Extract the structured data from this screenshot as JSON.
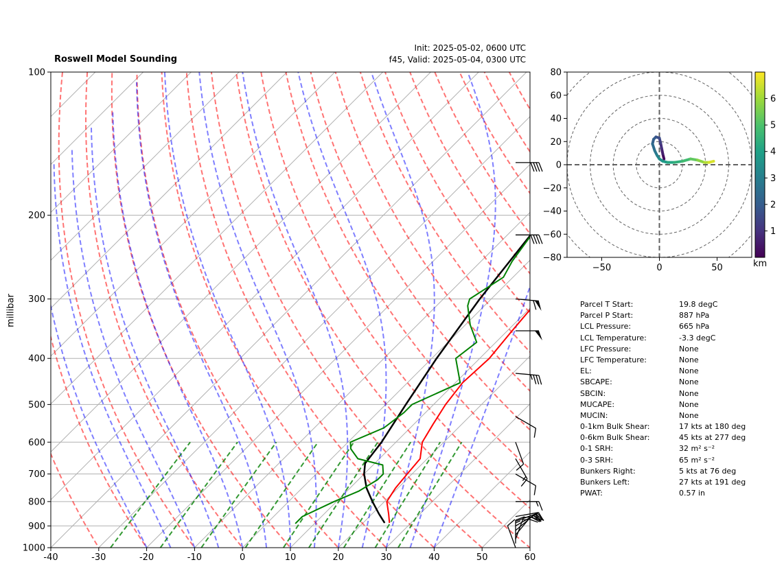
{
  "title": "Roswell Model Sounding",
  "init": "Init: 2025-05-02, 0600 UTC",
  "valid": "f45, Valid: 2025-05-04, 0300 UTC",
  "chart_data": [
    {
      "type": "line",
      "name": "skew-t",
      "ylabel": "millibar",
      "xlim": [
        -40,
        60
      ],
      "ylim_pressure": [
        1000,
        100
      ],
      "xticks": [
        -40,
        -30,
        -20,
        -10,
        0,
        10,
        20,
        30,
        40,
        50,
        60
      ],
      "pressure_ticks": [
        100,
        200,
        300,
        400,
        500,
        600,
        700,
        800,
        900,
        1000
      ],
      "series": [
        {
          "role": "parcel",
          "color": "#000000",
          "points": [
            [
              887,
              24.5
            ],
            [
              850,
              21.5
            ],
            [
              800,
              17.5
            ],
            [
              750,
              13.5
            ],
            [
              700,
              10.0
            ],
            [
              665,
              8.0
            ],
            [
              600,
              7.0
            ],
            [
              500,
              4.2
            ],
            [
              400,
              1.0
            ],
            [
              300,
              -2.4
            ],
            [
              200,
              -6.0
            ],
            [
              150,
              -9.0
            ],
            [
              100,
              -9.5
            ]
          ]
        },
        {
          "role": "temperature",
          "color": "#ff0000",
          "points": [
            [
              887,
              25.5
            ],
            [
              850,
              23.5
            ],
            [
              800,
              20.5
            ],
            [
              750,
              19.5
            ],
            [
              700,
              19.0
            ],
            [
              650,
              18.5
            ],
            [
              600,
              15.5
            ],
            [
              550,
              14.0
            ],
            [
              500,
              12.5
            ],
            [
              450,
              11.5
            ],
            [
              400,
              12.0
            ],
            [
              350,
              11.0
            ],
            [
              300,
              10.0
            ],
            [
              250,
              10.0
            ],
            [
              220,
              11.5
            ],
            [
              190,
              12.5
            ],
            [
              160,
              17.0
            ],
            [
              130,
              26.0
            ],
            [
              100,
              38.0
            ]
          ]
        },
        {
          "role": "dewpoint",
          "color": "#008000",
          "points": [
            [
              890,
              6.0
            ],
            [
              860,
              6.0
            ],
            [
              800,
              9.5
            ],
            [
              760,
              12.5
            ],
            [
              720,
              14.0
            ],
            [
              700,
              14.0
            ],
            [
              670,
              12.0
            ],
            [
              650,
              5.5
            ],
            [
              620,
              2.0
            ],
            [
              600,
              0.5
            ],
            [
              560,
              4.5
            ],
            [
              520,
              5.5
            ],
            [
              500,
              5.5
            ],
            [
              450,
              11.0
            ],
            [
              400,
              5.0
            ],
            [
              370,
              6.0
            ],
            [
              340,
              1.0
            ],
            [
              310,
              -3.5
            ],
            [
              300,
              -4.5
            ],
            [
              270,
              -2.0
            ],
            [
              250,
              -3.5
            ],
            [
              220,
              -5.0
            ],
            [
              190,
              -7.5
            ],
            [
              160,
              -6.5
            ],
            [
              130,
              -2.5
            ],
            [
              115,
              0.0
            ],
            [
              100,
              6.5
            ]
          ]
        }
      ],
      "wind_barbs": [
        {
          "p": 1000,
          "dir": 160,
          "kts": 10
        },
        {
          "p": 980,
          "dir": 180,
          "kts": 15
        },
        {
          "p": 960,
          "dir": 200,
          "kts": 15
        },
        {
          "p": 940,
          "dir": 220,
          "kts": 20
        },
        {
          "p": 920,
          "dir": 230,
          "kts": 20
        },
        {
          "p": 900,
          "dir": 240,
          "kts": 20
        },
        {
          "p": 880,
          "dir": 250,
          "kts": 20
        },
        {
          "p": 860,
          "dir": 260,
          "kts": 15
        },
        {
          "p": 800,
          "dir": 270,
          "kts": 15
        },
        {
          "p": 700,
          "dir": 300,
          "kts": 10
        },
        {
          "p": 650,
          "dir": 330,
          "kts": 15
        },
        {
          "p": 600,
          "dir": 340,
          "kts": 10
        },
        {
          "p": 530,
          "dir": 300,
          "kts": 10
        },
        {
          "p": 430,
          "dir": 275,
          "kts": 35
        },
        {
          "p": 350,
          "dir": 270,
          "kts": 50
        },
        {
          "p": 300,
          "dir": 275,
          "kts": 60
        },
        {
          "p": 220,
          "dir": 270,
          "kts": 40
        },
        {
          "p": 155,
          "dir": 270,
          "kts": 40
        }
      ]
    },
    {
      "type": "line",
      "name": "hodograph",
      "xlim": [
        -80,
        80
      ],
      "ylim": [
        -80,
        80
      ],
      "xticks": [
        -50,
        0,
        50
      ],
      "yticks": [
        80,
        60,
        40,
        20,
        0,
        -20,
        -40,
        -60,
        -80
      ],
      "ring_spacing_kts": 20,
      "colorbar": {
        "label": "km",
        "ticks": [
          1,
          2,
          3,
          4,
          5,
          6
        ],
        "range": [
          0,
          7
        ]
      },
      "points": [
        [
          4,
          5,
          0.0
        ],
        [
          3,
          9,
          0.4
        ],
        [
          2,
          14,
          0.8
        ],
        [
          1,
          19,
          1.2
        ],
        [
          0,
          23,
          1.5
        ],
        [
          -3,
          24,
          1.8
        ],
        [
          -5,
          22,
          2.0
        ],
        [
          -6,
          18,
          2.3
        ],
        [
          -4,
          12,
          2.6
        ],
        [
          -2,
          8,
          3.0
        ],
        [
          0,
          5,
          3.3
        ],
        [
          3,
          3,
          3.6
        ],
        [
          7,
          2,
          4.0
        ],
        [
          13,
          2,
          4.3
        ],
        [
          20,
          3,
          4.6
        ],
        [
          27,
          5,
          5.0
        ],
        [
          33,
          4,
          5.5
        ],
        [
          39,
          2,
          6.0
        ],
        [
          43,
          2,
          6.4
        ],
        [
          47,
          3,
          6.8
        ]
      ]
    }
  ],
  "stats": [
    {
      "label": "Parcel T Start:",
      "value": "19.8 degC"
    },
    {
      "label": "Parcel P Start:",
      "value": "887 hPa"
    },
    {
      "label": "LCL Pressure:",
      "value": "665 hPa"
    },
    {
      "label": "LCL Temperature:",
      "value": "-3.3 degC"
    },
    {
      "label": "LFC Pressure:",
      "value": "None"
    },
    {
      "label": "LFC Temperature:",
      "value": "None"
    },
    {
      "label": "EL:",
      "value": "None"
    },
    {
      "label": "SBCAPE:",
      "value": "None"
    },
    {
      "label": "SBCIN:",
      "value": "None"
    },
    {
      "label": "MUCAPE:",
      "value": "None"
    },
    {
      "label": "MUCIN:",
      "value": "None"
    },
    {
      "label": "0-1km Bulk Shear:",
      "value": "17 kts at 180 deg"
    },
    {
      "label": "0-6km Bulk Shear:",
      "value": "45 kts at 277 deg"
    },
    {
      "label": "0-1 SRH:",
      "value": "32 m² s⁻²"
    },
    {
      "label": "0-3 SRH:",
      "value": "65 m² s⁻²"
    },
    {
      "label": "Bunkers Right:",
      "value": "5 kts at 76 deg"
    },
    {
      "label": "Bunkers Left:",
      "value": "27 kts at 191 deg"
    },
    {
      "label": "PWAT:",
      "value": "0.57 in"
    }
  ]
}
